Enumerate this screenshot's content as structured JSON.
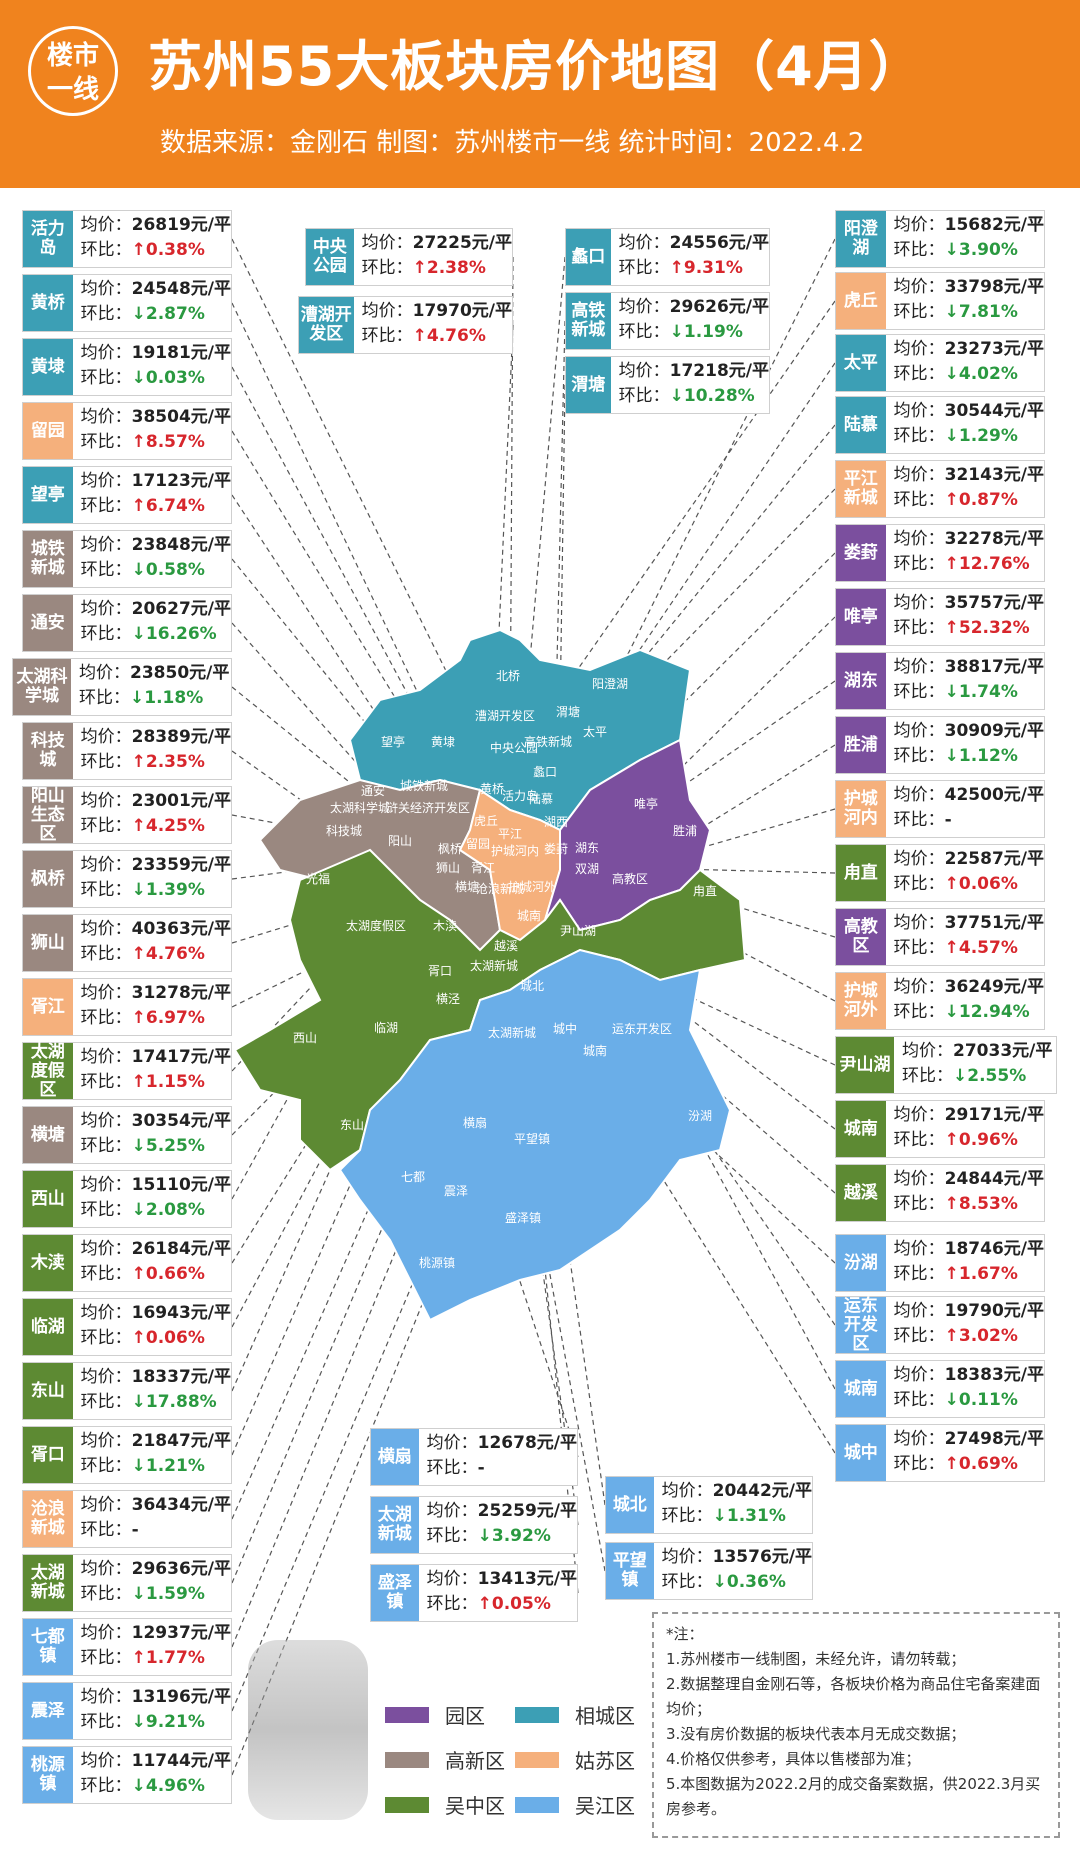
{
  "header": {
    "logo_top": "楼市",
    "logo_bottom": "一线",
    "title": "苏州55大板块房价地图（4月）",
    "subtitle": "数据来源：金刚石  制图：苏州楼市一线  统计时间：2022.4.2"
  },
  "labels": {
    "price": "均价：",
    "change": "环比："
  },
  "colors": {
    "相城区": "#3c9fb5",
    "园区": "#7b4f9e",
    "高新区": "#9a8880",
    "姑苏区": "#f5b07c",
    "吴中区": "#5d8a33",
    "吴江区": "#6aaee8",
    "up": "#d7262c",
    "down": "#2a9940"
  },
  "cards": [
    {
      "name": "活力岛",
      "district": "teal",
      "price": "26819元/平",
      "dir": "up",
      "change": "↑0.38%"
    },
    {
      "name": "黄桥",
      "district": "teal",
      "price": "24548元/平",
      "dir": "down",
      "change": "↓2.87%"
    },
    {
      "name": "黄埭",
      "district": "teal",
      "price": "19181元/平",
      "dir": "down",
      "change": "↓0.03%"
    },
    {
      "name": "留园",
      "district": "orange",
      "price": "38504元/平",
      "dir": "up",
      "change": "↑8.57%"
    },
    {
      "name": "望亭",
      "district": "teal",
      "price": "17123元/平",
      "dir": "up",
      "change": "↑6.74%"
    },
    {
      "name": "城铁新城",
      "district": "grey",
      "price": "23848元/平",
      "dir": "down",
      "change": "↓0.58%"
    },
    {
      "name": "通安",
      "district": "grey",
      "price": "20627元/平",
      "dir": "down",
      "change": "↓16.26%"
    },
    {
      "name": "太湖科学城",
      "district": "grey",
      "price": "23850元/平",
      "dir": "down",
      "change": "↓1.18%"
    },
    {
      "name": "科技城",
      "district": "grey",
      "price": "28389元/平",
      "dir": "up",
      "change": "↑2.35%"
    },
    {
      "name": "阳山生态区",
      "district": "grey",
      "price": "23001元/平",
      "dir": "up",
      "change": "↑4.25%"
    },
    {
      "name": "枫桥",
      "district": "grey",
      "price": "23359元/平",
      "dir": "down",
      "change": "↓1.39%"
    },
    {
      "name": "狮山",
      "district": "grey",
      "price": "40363元/平",
      "dir": "up",
      "change": "↑4.76%"
    },
    {
      "name": "胥江",
      "district": "orange",
      "price": "31278元/平",
      "dir": "up",
      "change": "↑6.97%"
    },
    {
      "name": "太湖度假区",
      "district": "green",
      "price": "17417元/平",
      "dir": "up",
      "change": "↑1.15%"
    },
    {
      "name": "横塘",
      "district": "grey",
      "price": "30354元/平",
      "dir": "down",
      "change": "↓5.25%"
    },
    {
      "name": "西山",
      "district": "green",
      "price": "15110元/平",
      "dir": "down",
      "change": "↓2.08%"
    },
    {
      "name": "木渎",
      "district": "green",
      "price": "26184元/平",
      "dir": "up",
      "change": "↑0.66%"
    },
    {
      "name": "临湖",
      "district": "green",
      "price": "16943元/平",
      "dir": "up",
      "change": "↑0.06%"
    },
    {
      "name": "东山",
      "district": "green",
      "price": "18337元/平",
      "dir": "down",
      "change": "↓17.88%"
    },
    {
      "name": "胥口",
      "district": "green",
      "price": "21847元/平",
      "dir": "down",
      "change": "↓1.21%"
    },
    {
      "name": "沧浪新城",
      "district": "orange",
      "price": "36434元/平",
      "dir": "none",
      "change": "-"
    },
    {
      "name": "太湖新城",
      "district": "green",
      "price": "29636元/平",
      "dir": "down",
      "change": "↓1.59%"
    },
    {
      "name": "七都镇",
      "district": "blue",
      "price": "12937元/平",
      "dir": "up",
      "change": "↑1.77%"
    },
    {
      "name": "震泽",
      "district": "blue",
      "price": "13196元/平",
      "dir": "down",
      "change": "↓9.21%"
    },
    {
      "name": "桃源镇",
      "district": "blue",
      "price": "11744元/平",
      "dir": "down",
      "change": "↓4.96%"
    },
    {
      "name": "中央公园",
      "district": "teal",
      "price": "27225元/平",
      "dir": "up",
      "change": "↑2.38%"
    },
    {
      "name": "漕湖开发区",
      "district": "teal",
      "price": "17970元/平",
      "dir": "up",
      "change": "↑4.76%"
    },
    {
      "name": "蠡口",
      "district": "teal",
      "price": "24556元/平",
      "dir": "up",
      "change": "↑9.31%"
    },
    {
      "name": "高铁新城",
      "district": "teal",
      "price": "29626元/平",
      "dir": "down",
      "change": "↓1.19%"
    },
    {
      "name": "渭塘",
      "district": "teal",
      "price": "17218元/平",
      "dir": "down",
      "change": "↓10.28%"
    },
    {
      "name": "阳澄湖",
      "district": "teal",
      "price": "15682元/平",
      "dir": "down",
      "change": "↓3.90%"
    },
    {
      "name": "虎丘",
      "district": "orange",
      "price": "33798元/平",
      "dir": "down",
      "change": "↓7.81%"
    },
    {
      "name": "太平",
      "district": "teal",
      "price": "23273元/平",
      "dir": "down",
      "change": "↓4.02%"
    },
    {
      "name": "陆慕",
      "district": "teal",
      "price": "30544元/平",
      "dir": "down",
      "change": "↓1.29%"
    },
    {
      "name": "平江新城",
      "district": "orange",
      "price": "32143元/平",
      "dir": "up",
      "change": "↑0.87%"
    },
    {
      "name": "娄葑",
      "district": "purple",
      "price": "32278元/平",
      "dir": "up",
      "change": "↑12.76%"
    },
    {
      "name": "唯亭",
      "district": "purple",
      "price": "35757元/平",
      "dir": "up",
      "change": "↑52.32%"
    },
    {
      "name": "湖东",
      "district": "purple",
      "price": "38817元/平",
      "dir": "down",
      "change": "↓1.74%"
    },
    {
      "name": "胜浦",
      "district": "purple",
      "price": "30909元/平",
      "dir": "down",
      "change": "↓1.12%"
    },
    {
      "name": "护城河内",
      "district": "orange",
      "price": "42500元/平",
      "dir": "none",
      "change": "-"
    },
    {
      "name": "甪直",
      "district": "green",
      "price": "22587元/平",
      "dir": "up",
      "change": "↑0.06%"
    },
    {
      "name": "高教区",
      "district": "purple",
      "price": "37751元/平",
      "dir": "up",
      "change": "↑4.57%"
    },
    {
      "name": "护城河外",
      "district": "orange",
      "price": "36249元/平",
      "dir": "down",
      "change": "↓12.94%"
    },
    {
      "name": "尹山湖",
      "district": "green",
      "price": "27033元/平",
      "dir": "down",
      "change": "↓2.55%"
    },
    {
      "name": "城南",
      "district": "green",
      "price": "29171元/平",
      "dir": "up",
      "change": "↑0.96%"
    },
    {
      "name": "越溪",
      "district": "green",
      "price": "24844元/平",
      "dir": "up",
      "change": "↑8.53%"
    },
    {
      "name": "汾湖",
      "district": "blue",
      "price": "18746元/平",
      "dir": "up",
      "change": "↑1.67%"
    },
    {
      "name": "运东开发区",
      "district": "blue",
      "price": "19790元/平",
      "dir": "up",
      "change": "↑3.02%"
    },
    {
      "name": "城南",
      "district": "blue",
      "price": "18383元/平",
      "dir": "down",
      "change": "↓0.11%"
    },
    {
      "name": "城中",
      "district": "blue",
      "price": "27498元/平",
      "dir": "up",
      "change": "↑0.69%"
    },
    {
      "name": "横扇",
      "district": "blue",
      "price": "12678元/平",
      "dir": "none",
      "change": "-"
    },
    {
      "name": "太湖新城",
      "district": "blue",
      "price": "25259元/平",
      "dir": "down",
      "change": "↓3.92%"
    },
    {
      "name": "盛泽镇",
      "district": "blue",
      "price": "13413元/平",
      "dir": "up",
      "change": "↑0.05%"
    },
    {
      "name": "城北",
      "district": "blue",
      "price": "20442元/平",
      "dir": "down",
      "change": "↓1.31%"
    },
    {
      "name": "平望镇",
      "district": "blue",
      "price": "13576元/平",
      "dir": "down",
      "change": "↓0.36%"
    }
  ],
  "map_labels": [
    "北桥",
    "阳澄湖",
    "漕湖开发区",
    "渭塘",
    "太平",
    "望亭",
    "黄埭",
    "高铁新城",
    "中央公园",
    "蠡口",
    "通安",
    "城铁新城",
    "太湖科学城",
    "浒关经济开发区",
    "黄桥",
    "活力岛",
    "陆慕",
    "唯亭",
    "胜浦",
    "科技城",
    "阳山",
    "虎丘",
    "留园",
    "平江",
    "湖西",
    "湖东",
    "枫桥",
    "护城河内",
    "娄葑",
    "狮山",
    "胥江",
    "双湖",
    "高教区",
    "光福",
    "横塘",
    "沧浪新城",
    "护城河外",
    "甪直",
    "太湖度假区",
    "木渎",
    "城南",
    "尹山湖",
    "越溪",
    "胥口",
    "太湖新城",
    "城北",
    "横泾",
    "临湖",
    "西山",
    "太湖新城",
    "城中",
    "运东开发区",
    "城南",
    "东山",
    "汾湖",
    "横扇",
    "平望镇",
    "七都",
    "震泽",
    "盛泽镇",
    "桃源镇"
  ],
  "legend": [
    {
      "label": "园区",
      "color": "#7b4f9e"
    },
    {
      "label": "相城区",
      "color": "#3c9fb5"
    },
    {
      "label": "高新区",
      "color": "#9a8880"
    },
    {
      "label": "姑苏区",
      "color": "#f5b07c"
    },
    {
      "label": "吴中区",
      "color": "#5d8a33"
    },
    {
      "label": "吴江区",
      "color": "#6aaee8"
    }
  ],
  "notes": {
    "title": "*注：",
    "items": [
      "1.苏州楼市一线制图，未经允许，请勿转载；",
      "2.数据整理自金刚石等，各板块价格为商品住宅备案建面均价；",
      "3.没有房价数据的板块代表本月无成交数据；",
      "4.价格仅供参考，具体以售楼部为准；",
      "5.本图数据为2022.2月的成交备案数据，供2022.3月买房参考。"
    ]
  }
}
